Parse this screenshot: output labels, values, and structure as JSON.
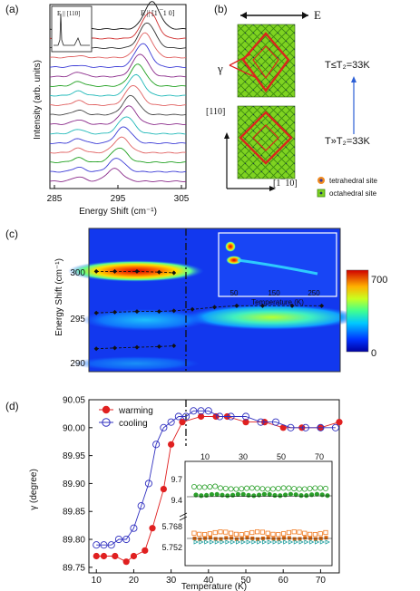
{
  "panel_a": {
    "label": "(a)",
    "ylabel": "Intensity (arb. units)",
    "xlabel": "Energy Shift (cm⁻¹)",
    "inset_label": "E || [110]",
    "legend": "E || [1 ¯1 0]",
    "chart_data": {
      "type": "line",
      "xlim": [
        285,
        305
      ],
      "ticks": [
        "285",
        "295",
        "305"
      ],
      "spectra_count": 17,
      "colors": [
        "#8a2a8a",
        "#3b3bd6",
        "#1fa01f",
        "#e06060",
        "#3b3bd6",
        "#1fb8b8",
        "#8a2a8a",
        "#444",
        "#e06060",
        "#1fb8b8",
        "#1fa01f",
        "#8a2a8a",
        "#3b3bd6",
        "#e06060",
        "#333",
        "#d03030",
        "#111"
      ]
    }
  },
  "panel_b": {
    "label": "(b)",
    "field": "E",
    "gamma": "γ",
    "state_low": "T≤T₂=33K",
    "state_high": "T»T₂=33K",
    "axis_vertical": "[110]",
    "axis_horizontal": "[1¯10]",
    "legend_tetra": "tetrahedral site",
    "legend_octa": "octahedral site",
    "colors": {
      "lattice": "#7fd321",
      "octa_dark": "#3d8a10",
      "rhombus": "#d9261c",
      "arrow": "#2c5fd6"
    }
  },
  "panel_c": {
    "label": "(c)",
    "ylabel": "Energy Shift (cm⁻¹)",
    "transition": "T₂=33",
    "yticks": [
      "300",
      "295",
      "290"
    ],
    "colorbar": {
      "max": "700",
      "min": "0"
    },
    "inset": {
      "xlabel": "Temperature (K)",
      "ticks": [
        "50",
        "150",
        "250"
      ]
    },
    "chart_data": {
      "type": "heatmap",
      "ylim": [
        286,
        306
      ],
      "xlim": [
        8,
        76
      ],
      "zlim": [
        0,
        700
      ],
      "branches": [
        {
          "points": [
            [
              10,
              300.0
            ],
            [
              15,
              300.0
            ],
            [
              21,
              300.0
            ],
            [
              27,
              299.9
            ],
            [
              31,
              299.8
            ]
          ]
        },
        {
          "points": [
            [
              10,
              294.2
            ],
            [
              15,
              294.3
            ],
            [
              21,
              294.4
            ],
            [
              27,
              294.4
            ],
            [
              31,
              294.5
            ],
            [
              36,
              294.7
            ],
            [
              42,
              295.0
            ],
            [
              48,
              295.2
            ],
            [
              55,
              295.2
            ],
            [
              63,
              295.2
            ],
            [
              71,
              295.2
            ]
          ]
        },
        {
          "points": [
            [
              10,
              289.2
            ],
            [
              15,
              289.3
            ],
            [
              21,
              289.4
            ],
            [
              27,
              289.5
            ],
            [
              31,
              289.6
            ]
          ]
        }
      ]
    }
  },
  "panel_d": {
    "label": "(d)",
    "ylabel": "γ (degree)",
    "xlabel": "Temperature (K)",
    "legend": {
      "warming": "warming",
      "cooling": "cooling"
    },
    "yticks": [
      "90.05",
      "90.00",
      "89.95",
      "89.90",
      "89.85",
      "89.80",
      "89.75"
    ],
    "xticks": [
      "10",
      "20",
      "30",
      "40",
      "50",
      "60",
      "70"
    ],
    "colors": {
      "warming": "#e02020",
      "cooling": "#3030c0"
    },
    "chart_data": {
      "type": "scatter",
      "xlim": [
        8,
        75
      ],
      "ylim": [
        89.74,
        90.05
      ],
      "series": [
        {
          "name": "warming",
          "x": [
            10,
            12,
            15,
            18,
            20,
            23,
            25,
            28,
            30,
            33,
            38,
            42,
            45,
            50,
            55,
            60,
            65,
            70,
            75
          ],
          "y": [
            89.77,
            89.77,
            89.77,
            89.76,
            89.77,
            89.78,
            89.82,
            89.89,
            89.97,
            90.01,
            90.02,
            90.02,
            90.02,
            90.01,
            90.01,
            90.0,
            90.0,
            90.0,
            90.01
          ]
        },
        {
          "name": "cooling",
          "x": [
            10,
            12,
            14,
            16,
            18,
            20,
            22,
            24,
            26,
            28,
            30,
            32,
            34,
            36,
            38,
            40,
            43,
            46,
            50,
            54,
            58,
            62,
            66,
            70,
            74
          ],
          "y": [
            89.79,
            89.79,
            89.79,
            89.8,
            89.8,
            89.82,
            89.86,
            89.9,
            89.97,
            90.0,
            90.01,
            90.02,
            90.02,
            90.03,
            90.03,
            90.03,
            90.02,
            90.02,
            90.02,
            90.01,
            90.01,
            90.0,
            90.0,
            90.0,
            90.0
          ]
        }
      ]
    },
    "inset": {
      "xticks": [
        "10",
        "30",
        "50",
        "70"
      ],
      "yticks": [
        "9.7",
        "9.4",
        "5.768",
        "5.752"
      ]
    }
  }
}
